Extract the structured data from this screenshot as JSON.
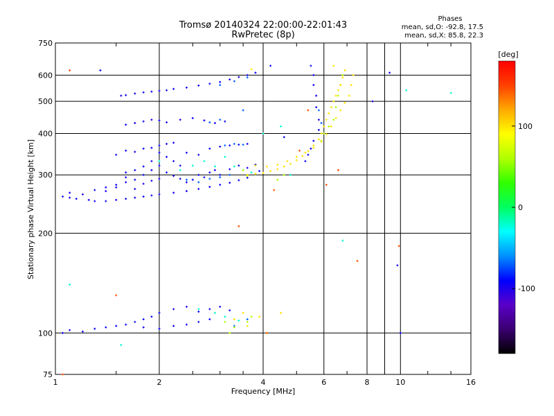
{
  "chart_data": {
    "type": "scatter",
    "title": "Tromsø 20140324 22:00:00-22:01:43",
    "subtitle": "RwPretec (8p)",
    "xlabel": "Frequency [MHz]",
    "ylabel": "Stationary phase Virtual Height [km]",
    "x_scale": "log",
    "y_scale": "log",
    "xlim": [
      1,
      16
    ],
    "ylim": [
      75,
      750
    ],
    "x_ticks": [
      1,
      2,
      4,
      6,
      8,
      10,
      16
    ],
    "x_grid": [
      2,
      4,
      6,
      8,
      9,
      10
    ],
    "y_ticks": [
      75,
      100,
      200,
      300,
      400,
      500,
      600,
      750
    ],
    "y_grid": [
      100,
      200,
      300,
      400,
      500,
      600
    ],
    "grid": true,
    "phases_box": {
      "heading": "Phases",
      "line_o": "mean, sd,O: -92.8, 17.5",
      "line_x": "mean, sd,X:  85.8, 22.3"
    },
    "colorbar": {
      "label": "[deg]",
      "min": -180,
      "max": 180,
      "ticks": [
        100,
        0,
        -100
      ],
      "colors": [
        "#000000",
        "#3a0070",
        "#5a00c8",
        "#0000ff",
        "#0090ff",
        "#00ffff",
        "#00ff60",
        "#30ff00",
        "#b0ff00",
        "#ffff00",
        "#ffaa00",
        "#ff4000",
        "#ff0000"
      ]
    },
    "series": [
      {
        "phase": -95,
        "points": [
          [
            1.05,
            258
          ],
          [
            1.1,
            256
          ],
          [
            1.15,
            254
          ],
          [
            1.25,
            252
          ],
          [
            1.3,
            250
          ],
          [
            1.4,
            250
          ],
          [
            1.5,
            252
          ],
          [
            1.6,
            254
          ],
          [
            1.7,
            256
          ],
          [
            1.8,
            258
          ],
          [
            1.9,
            260
          ],
          [
            2.0,
            262
          ],
          [
            2.2,
            265
          ],
          [
            2.4,
            268
          ],
          [
            2.6,
            272
          ],
          [
            2.8,
            276
          ],
          [
            3.0,
            280
          ],
          [
            3.2,
            284
          ],
          [
            3.4,
            289
          ],
          [
            3.6,
            294
          ],
          [
            1.1,
            265
          ],
          [
            1.2,
            262
          ],
          [
            1.3,
            270
          ],
          [
            1.4,
            275
          ],
          [
            1.5,
            280
          ],
          [
            1.6,
            285
          ],
          [
            1.7,
            290
          ],
          [
            1.8,
            300
          ],
          [
            1.9,
            310
          ],
          [
            2.0,
            320
          ],
          [
            2.1,
            305
          ],
          [
            2.2,
            298
          ],
          [
            2.3,
            292
          ],
          [
            2.4,
            285
          ],
          [
            2.5,
            290
          ],
          [
            2.6,
            300
          ],
          [
            2.7,
            295
          ],
          [
            2.8,
            305
          ],
          [
            2.9,
            310
          ],
          [
            3.0,
            300
          ],
          [
            3.2,
            312
          ],
          [
            3.4,
            320
          ],
          [
            3.6,
            315
          ],
          [
            3.8,
            322
          ],
          [
            1.4,
            268
          ],
          [
            1.5,
            275
          ],
          [
            1.6,
            295
          ],
          [
            1.7,
            272
          ],
          [
            1.8,
            282
          ],
          [
            1.9,
            288
          ],
          [
            2.0,
            292
          ],
          [
            2.1,
            340
          ],
          [
            2.2,
            330
          ],
          [
            2.3,
            320
          ],
          [
            2.0,
            350
          ],
          [
            1.9,
            330
          ],
          [
            1.8,
            318
          ],
          [
            1.7,
            310
          ],
          [
            1.6,
            305
          ],
          [
            1.5,
            345
          ],
          [
            1.6,
            355
          ],
          [
            1.7,
            352
          ],
          [
            1.8,
            360
          ],
          [
            1.9,
            362
          ],
          [
            2.0,
            368
          ],
          [
            2.1,
            372
          ],
          [
            2.2,
            375
          ],
          [
            2.4,
            350
          ],
          [
            2.6,
            345
          ],
          [
            2.8,
            360
          ],
          [
            3.0,
            365
          ],
          [
            3.2,
            368
          ],
          [
            3.4,
            370
          ],
          [
            3.6,
            372
          ],
          [
            1.6,
            425
          ],
          [
            1.7,
            430
          ],
          [
            1.8,
            435
          ],
          [
            1.9,
            440
          ],
          [
            2.0,
            438
          ],
          [
            2.1,
            432
          ],
          [
            2.3,
            440
          ],
          [
            2.5,
            445
          ],
          [
            2.7,
            438
          ],
          [
            2.9,
            430
          ],
          [
            3.1,
            435
          ],
          [
            1.55,
            520
          ],
          [
            1.6,
            522
          ],
          [
            1.7,
            528
          ],
          [
            1.8,
            532
          ],
          [
            1.9,
            535
          ],
          [
            2.0,
            538
          ],
          [
            2.1,
            540
          ],
          [
            2.2,
            545
          ],
          [
            2.4,
            550
          ],
          [
            2.6,
            558
          ],
          [
            2.8,
            565
          ],
          [
            3.0,
            572
          ],
          [
            3.2,
            582
          ],
          [
            3.4,
            592
          ],
          [
            3.6,
            600
          ],
          [
            3.8,
            610
          ],
          [
            5.5,
            640
          ],
          [
            5.6,
            600
          ],
          [
            5.6,
            560
          ],
          [
            5.7,
            520
          ],
          [
            5.7,
            480
          ],
          [
            5.8,
            440
          ],
          [
            5.8,
            410
          ],
          [
            5.6,
            380
          ],
          [
            5.5,
            360
          ],
          [
            5.4,
            345
          ],
          [
            5.3,
            330
          ],
          [
            1.05,
            100
          ],
          [
            1.1,
            102
          ],
          [
            1.2,
            101
          ],
          [
            1.3,
            103
          ],
          [
            1.4,
            104
          ],
          [
            1.5,
            105
          ],
          [
            1.6,
            106
          ],
          [
            1.7,
            108
          ],
          [
            1.8,
            110
          ],
          [
            1.9,
            112
          ],
          [
            2.0,
            115
          ],
          [
            2.2,
            118
          ],
          [
            2.4,
            120
          ],
          [
            2.6,
            116
          ],
          [
            2.8,
            118
          ],
          [
            3.0,
            120
          ],
          [
            3.2,
            117
          ],
          [
            1.8,
            104
          ],
          [
            2.0,
            103
          ],
          [
            2.2,
            105
          ],
          [
            2.4,
            106
          ],
          [
            2.6,
            108
          ],
          [
            2.8,
            110
          ],
          [
            1.35,
            620
          ],
          [
            4.2,
            640
          ],
          [
            8.3,
            500
          ],
          [
            9.3,
            610
          ],
          [
            9.8,
            160
          ],
          [
            10.0,
            100
          ],
          [
            4.6,
            390
          ],
          [
            3.9,
            308
          ]
        ]
      },
      {
        "phase": -70,
        "points": [
          [
            2.4,
            290
          ],
          [
            2.6,
            285
          ],
          [
            2.8,
            292
          ],
          [
            3.0,
            295
          ],
          [
            3.2,
            300
          ],
          [
            3.1,
            368
          ],
          [
            3.3,
            372
          ],
          [
            3.5,
            370
          ],
          [
            2.8,
            432
          ],
          [
            3.0,
            440
          ],
          [
            3.5,
            470
          ],
          [
            3.0,
            560
          ],
          [
            3.3,
            575
          ],
          [
            3.6,
            590
          ],
          [
            5.8,
            470
          ],
          [
            5.9,
            430
          ],
          [
            3.3,
            105
          ],
          [
            3.6,
            110
          ]
        ]
      },
      {
        "phase": -20,
        "points": [
          [
            2.0,
            330
          ],
          [
            2.3,
            310
          ],
          [
            2.5,
            320
          ],
          [
            2.7,
            330
          ],
          [
            2.9,
            318
          ],
          [
            3.1,
            340
          ],
          [
            3.3,
            318
          ],
          [
            3.5,
            310
          ],
          [
            3.7,
            305
          ],
          [
            2.6,
            118
          ],
          [
            2.9,
            115
          ],
          [
            3.1,
            112
          ],
          [
            3.4,
            109
          ],
          [
            4.0,
            400
          ],
          [
            4.8,
            300
          ],
          [
            4.5,
            420
          ],
          [
            1.55,
            92
          ],
          [
            6.8,
            190
          ],
          [
            10.4,
            540
          ],
          [
            14.0,
            530
          ],
          [
            1.1,
            140
          ]
        ]
      },
      {
        "phase": 60,
        "points": [
          [
            3.7,
            112
          ],
          [
            3.6,
            108
          ],
          [
            3.3,
            104
          ],
          [
            3.1,
            108
          ],
          [
            3.2,
            100
          ],
          [
            5.9,
            380
          ],
          [
            6.0,
            400
          ],
          [
            6.2,
            420
          ],
          [
            6.4,
            440
          ],
          [
            6.5,
            480
          ],
          [
            6.6,
            520
          ],
          [
            6.7,
            560
          ],
          [
            6.8,
            600
          ],
          [
            3.5,
            310
          ],
          [
            3.6,
            298
          ],
          [
            4.4,
            290
          ],
          [
            4.6,
            300
          ]
        ]
      },
      {
        "phase": 100,
        "points": [
          [
            3.6,
            300
          ],
          [
            3.8,
            302
          ],
          [
            4.0,
            304
          ],
          [
            4.2,
            308
          ],
          [
            4.4,
            312
          ],
          [
            4.6,
            318
          ],
          [
            4.8,
            324
          ],
          [
            5.0,
            332
          ],
          [
            5.2,
            342
          ],
          [
            5.4,
            354
          ],
          [
            5.6,
            368
          ],
          [
            5.8,
            384
          ],
          [
            5.9,
            400
          ],
          [
            6.0,
            420
          ],
          [
            6.1,
            440
          ],
          [
            6.2,
            460
          ],
          [
            6.3,
            480
          ],
          [
            6.4,
            500
          ],
          [
            6.5,
            520
          ],
          [
            6.6,
            540
          ],
          [
            6.7,
            560
          ],
          [
            6.8,
            590
          ],
          [
            6.9,
            620
          ],
          [
            6.4,
            640
          ],
          [
            3.8,
            320
          ],
          [
            4.1,
            318
          ],
          [
            4.4,
            322
          ],
          [
            4.7,
            330
          ],
          [
            5.0,
            340
          ],
          [
            5.3,
            350
          ],
          [
            5.6,
            362
          ],
          [
            5.9,
            378
          ],
          [
            6.1,
            398
          ],
          [
            6.3,
            420
          ],
          [
            6.5,
            445
          ],
          [
            6.7,
            470
          ],
          [
            6.9,
            495
          ],
          [
            7.1,
            520
          ],
          [
            7.2,
            560
          ],
          [
            7.3,
            600
          ],
          [
            3.5,
            115
          ],
          [
            3.3,
            110
          ],
          [
            3.6,
            105
          ],
          [
            3.9,
            112
          ],
          [
            4.1,
            100
          ],
          [
            4.5,
            115
          ],
          [
            3.7,
            625
          ]
        ]
      },
      {
        "phase": 145,
        "points": [
          [
            1.1,
            620
          ],
          [
            3.4,
            210
          ],
          [
            4.3,
            270
          ],
          [
            5.4,
            470
          ],
          [
            6.1,
            280
          ],
          [
            7.5,
            165
          ],
          [
            4.1,
            100
          ],
          [
            5.1,
            355
          ],
          [
            6.6,
            310
          ],
          [
            9.9,
            183
          ],
          [
            1.05,
            75
          ],
          [
            1.5,
            130
          ]
        ]
      }
    ]
  }
}
